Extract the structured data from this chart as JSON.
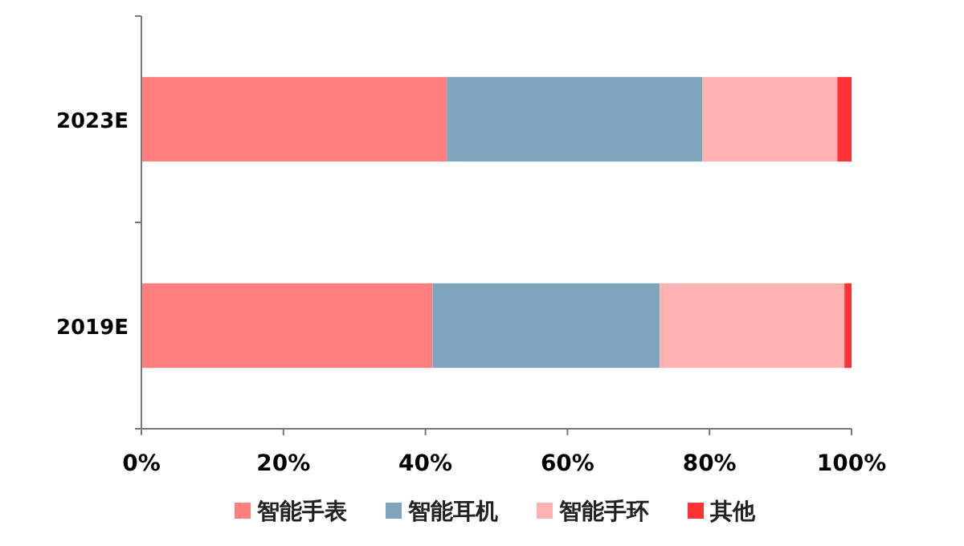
{
  "chart_data": {
    "type": "bar",
    "orientation": "horizontal",
    "stacked": true,
    "categories": [
      "2023E",
      "2019E"
    ],
    "series": [
      {
        "name": "智能手表",
        "color": "#ff7f7f",
        "values": [
          43,
          41
        ]
      },
      {
        "name": "智能耳机",
        "color": "#7fa5be",
        "values": [
          36,
          32
        ]
      },
      {
        "name": "智能手环",
        "color": "#ffb2b2",
        "values": [
          19,
          26
        ]
      },
      {
        "name": "其他",
        "color": "#ff3333",
        "values": [
          2,
          1
        ]
      }
    ],
    "xlim": [
      0,
      100
    ],
    "xticks": [
      {
        "value": 0,
        "label": "0%"
      },
      {
        "value": 20,
        "label": "20%"
      },
      {
        "value": 40,
        "label": "40%"
      },
      {
        "value": 60,
        "label": "60%"
      },
      {
        "value": 80,
        "label": "80%"
      },
      {
        "value": 100,
        "label": "100%"
      }
    ],
    "grid": false,
    "legend": "bottom"
  }
}
